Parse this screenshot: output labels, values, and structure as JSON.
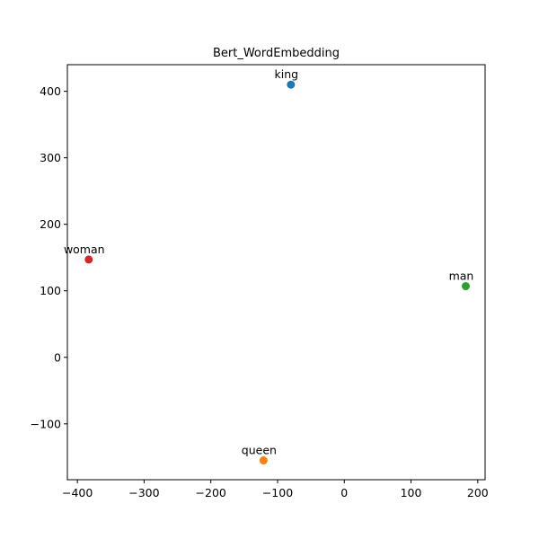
{
  "chart_data": {
    "type": "scatter",
    "title": "Bert_WordEmbedding",
    "xlabel": "",
    "ylabel": "",
    "xlim": [
      -415,
      211
    ],
    "ylim": [
      -184,
      440
    ],
    "xticks": [
      -400,
      -300,
      -200,
      -100,
      0,
      100,
      200
    ],
    "yticks": [
      -100,
      0,
      100,
      200,
      300,
      400
    ],
    "grid": false,
    "points": [
      {
        "label": "king",
        "x": -80,
        "y": 410,
        "color": "#1f77b4"
      },
      {
        "label": "queen",
        "x": -121,
        "y": -155,
        "color": "#ff7f0e"
      },
      {
        "label": "man",
        "x": 182,
        "y": 107,
        "color": "#2ca02c"
      },
      {
        "label": "woman",
        "x": -383,
        "y": 147,
        "color": "#d62728"
      }
    ]
  }
}
